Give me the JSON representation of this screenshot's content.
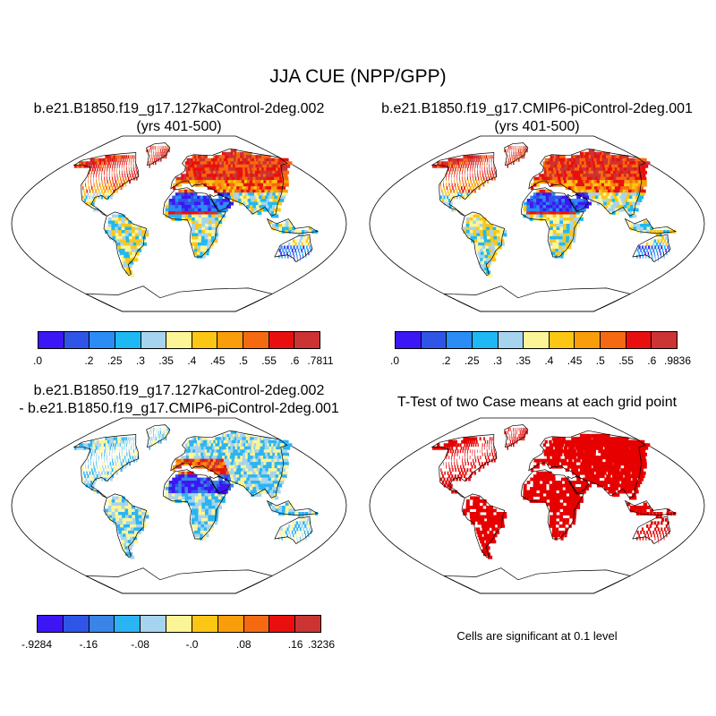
{
  "title": "JJA CUE (NPP/GPP)",
  "panels": [
    {
      "id": "tl",
      "title_lines": [
        "b.e21.B1850.f19_g17.127kaControl-2deg.002",
        "(yrs 401-500)"
      ]
    },
    {
      "id": "tr",
      "title_lines": [
        "b.e21.B1850.f19_g17.CMIP6-piControl-2deg.001",
        "(yrs 401-500)"
      ]
    },
    {
      "id": "bl",
      "title_lines": [
        "b.e21.B1850.f19_g17.127kaControl-2deg.002",
        "- b.e21.B1850.f19_g17.CMIP6-piControl-2deg.001"
      ]
    },
    {
      "id": "br",
      "title_lines": [
        "T-Test of two Case means at each grid point"
      ]
    }
  ],
  "colorbars": [
    {
      "id": "cb-tl",
      "labels": [
        ".0",
        ".2",
        ".25",
        ".3",
        ".35",
        ".4",
        ".45",
        ".5",
        ".55",
        ".6",
        ".7811"
      ]
    },
    {
      "id": "cb-tr",
      "labels": [
        ".0",
        ".2",
        ".25",
        ".3",
        ".35",
        ".4",
        ".45",
        ".5",
        ".55",
        ".6",
        ".9836"
      ]
    },
    {
      "id": "cb-bl",
      "labels": [
        "-.9284",
        "-.16",
        "-.08",
        "-.0",
        ".08",
        ".16",
        ".3236"
      ]
    }
  ],
  "palette_main": [
    "#3d16f5",
    "#2f55e6",
    "#2b8cf5",
    "#1eb9f4",
    "#a6d4ee",
    "#fbf597",
    "#fcc714",
    "#f99d0b",
    "#f56a10",
    "#ea0f0f",
    "#cc3333"
  ],
  "palette_diff": [
    "#3d16f5",
    "#2f55e6",
    "#3a84e8",
    "#2bb4f3",
    "#a6d4ee",
    "#fbf597",
    "#fcc714",
    "#f99d0b",
    "#f56a10",
    "#ea0f0f",
    "#cc3333"
  ],
  "significance_color": "#e60000",
  "significance_note": "Cells are significant at 0.1 level"
}
